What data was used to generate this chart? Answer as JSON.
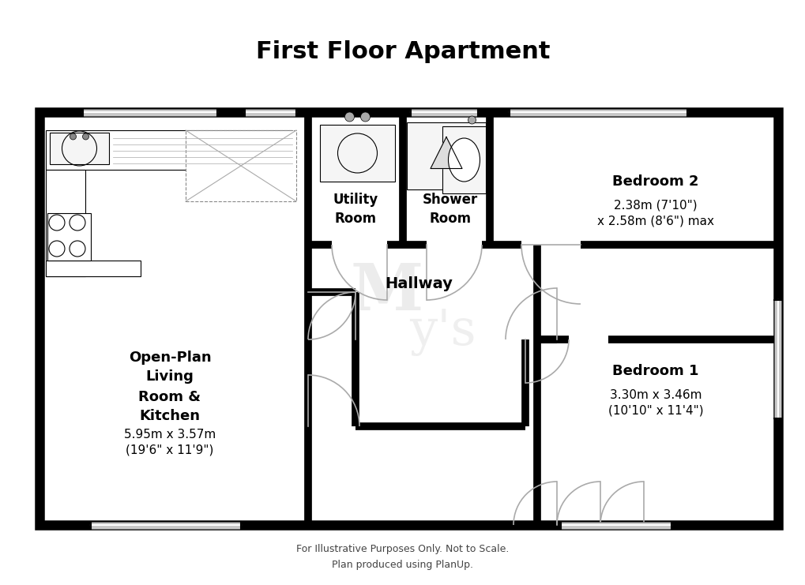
{
  "title": "First Floor Apartment",
  "footer_line1": "For Illustrative Purposes Only. Not to Scale.",
  "footer_line2": "Plan produced using PlanUp.",
  "bg_color": "#ffffff",
  "wall_color": "#000000",
  "rooms": {
    "living_label": "Open-Plan\nLiving\nRoom &\nKitchen",
    "living_dims": "5.95m x 3.57m\n(19'6\" x 11'9\")",
    "hallway_label": "Hallway",
    "utility_label": "Utility\nRoom",
    "shower_label": "Shower\nRoom",
    "bed2_label": "Bedroom 2",
    "bed2_dims": "2.38m (7'10\")\nx 2.58m (8'6\") max",
    "bed1_label": "Bedroom 1",
    "bed1_dims": "3.30m x 3.46m\n(10'10\" x 11'4\")"
  }
}
